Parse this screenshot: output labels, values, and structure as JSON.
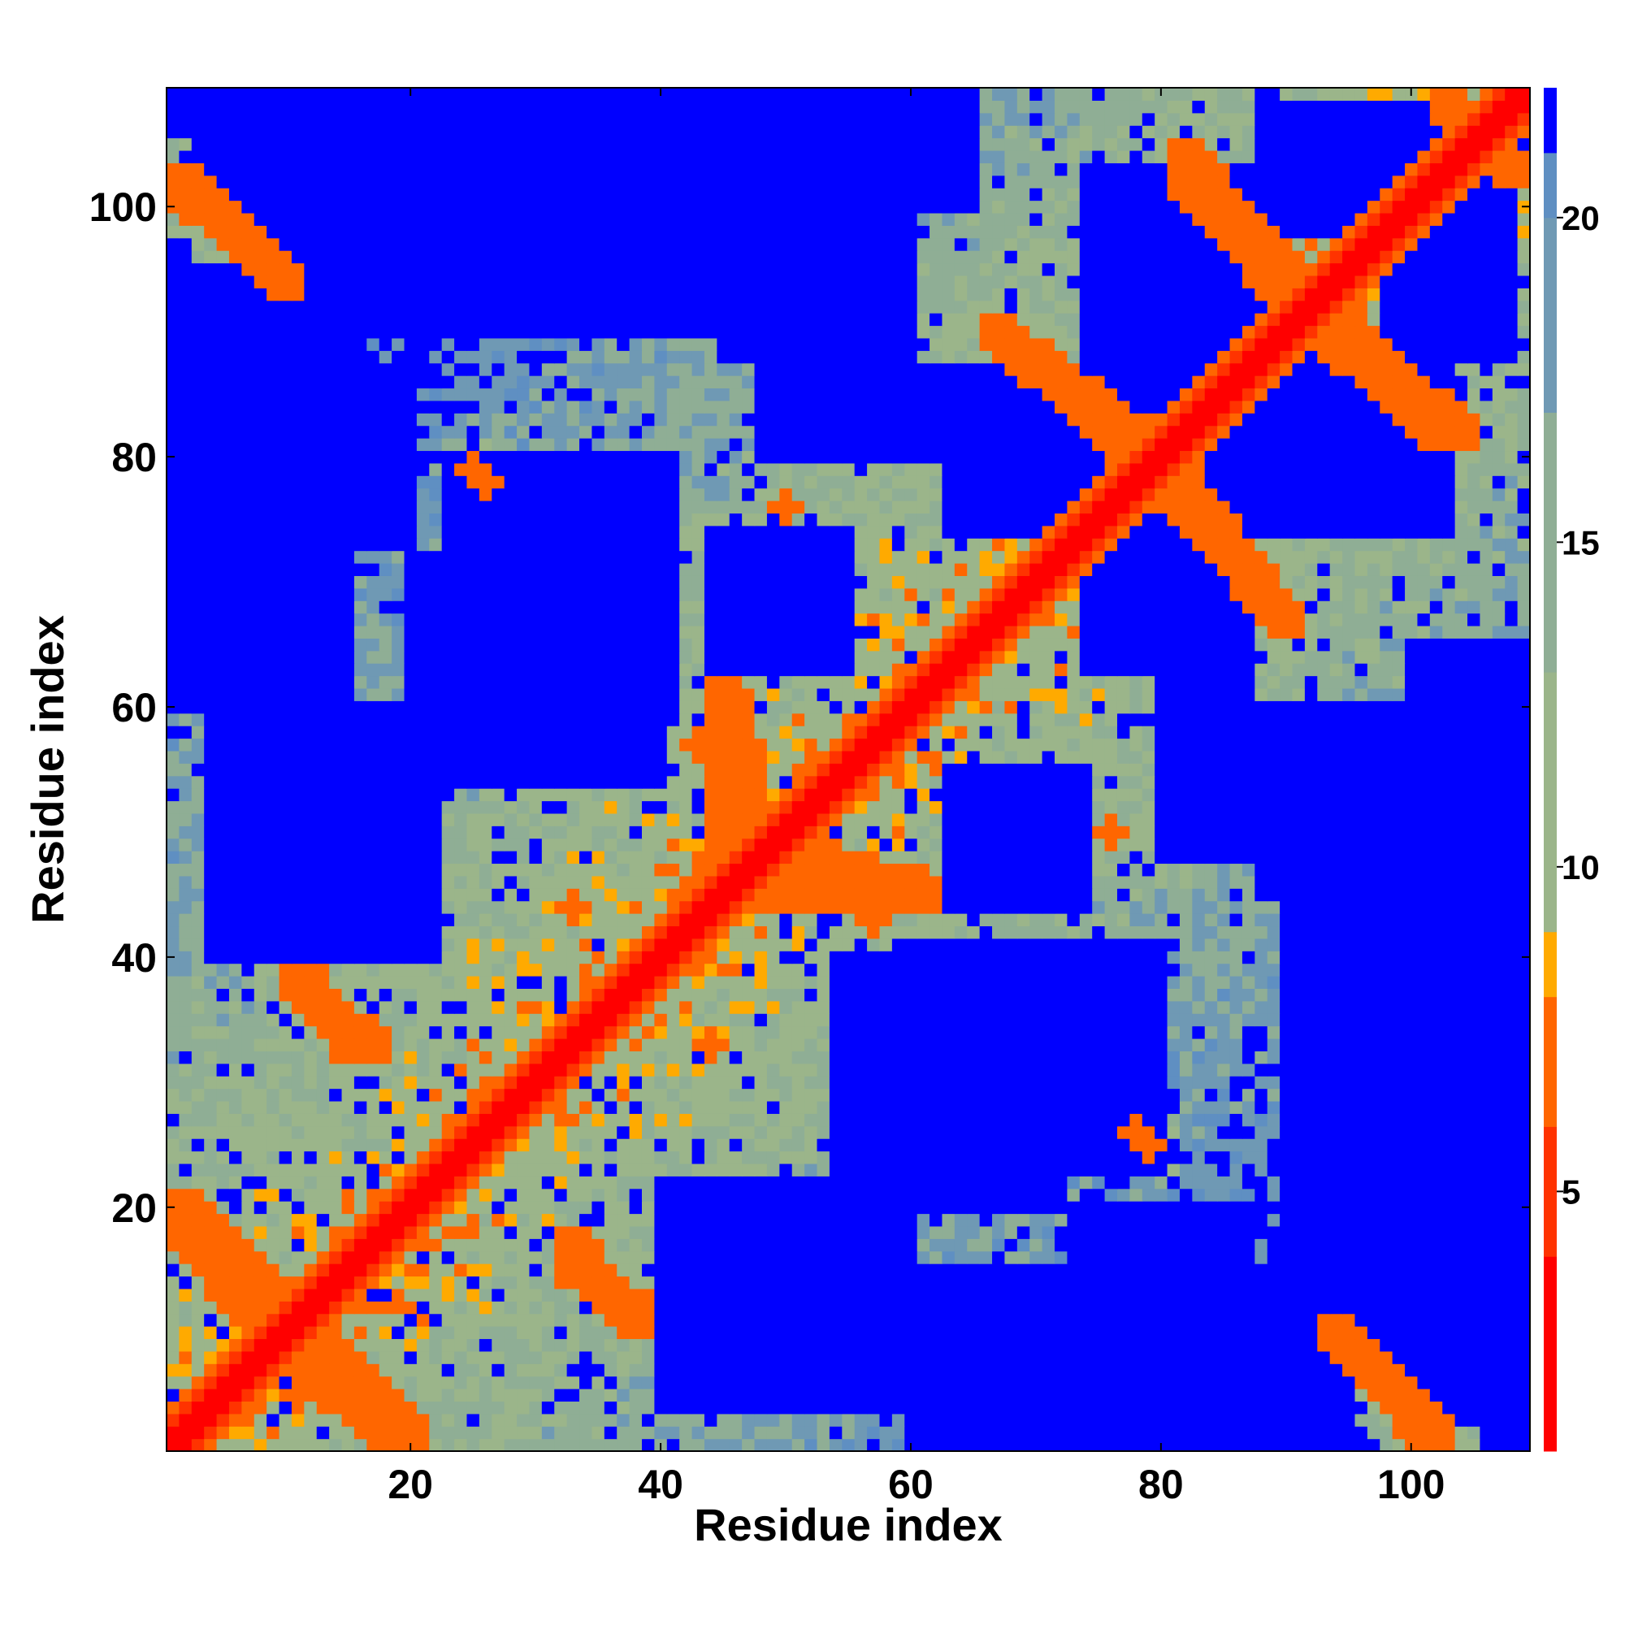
{
  "chart_data": {
    "type": "heatmap",
    "title": "",
    "xlabel": "Residue index",
    "ylabel": "Residue index",
    "x_range": [
      1,
      109
    ],
    "y_range": [
      1,
      109
    ],
    "n_residues": 109,
    "x_ticks": [
      20,
      40,
      60,
      80,
      100
    ],
    "y_ticks": [
      20,
      40,
      60,
      80,
      100
    ],
    "colorbar": {
      "range": [
        1,
        22
      ],
      "ticks": [
        5,
        10,
        15,
        20
      ],
      "clip_max": 22,
      "stops": [
        {
          "value": 1,
          "color": "#ff0000"
        },
        {
          "value": 4,
          "color": "#ff3300"
        },
        {
          "value": 6,
          "color": "#ff6600"
        },
        {
          "value": 8,
          "color": "#ffaa00"
        },
        {
          "value": 9,
          "color": "#9bb58a"
        },
        {
          "value": 13,
          "color": "#8fae95"
        },
        {
          "value": 17,
          "color": "#6f99b4"
        },
        {
          "value": 20,
          "color": "#5f8fc2"
        },
        {
          "value": 21,
          "color": "#0000ff"
        }
      ]
    },
    "features": {
      "description_note": "Symmetric residue distance map; main diagonal red, contact bands orange.",
      "contact_bands": [
        {
          "from": [
            1,
            102
          ],
          "to": [
            10,
            94
          ]
        },
        {
          "from": [
            2,
            20
          ],
          "to": [
            12,
            10
          ]
        },
        {
          "from": [
            10,
            8
          ],
          "to": [
            18,
            2
          ]
        },
        {
          "from": [
            11,
            38
          ],
          "to": [
            17,
            33
          ]
        },
        {
          "from": [
            33,
            15
          ],
          "to": [
            38,
            12
          ]
        },
        {
          "from": [
            46,
            60
          ],
          "to": [
            48,
            48
          ]
        },
        {
          "from": [
            50,
            45
          ],
          "to": [
            61,
            45
          ]
        },
        {
          "from": [
            67,
            90
          ],
          "to": [
            79,
            81
          ]
        },
        {
          "from": [
            80,
            78
          ],
          "to": [
            89,
            68
          ]
        },
        {
          "from": [
            82,
            104
          ],
          "to": [
            91,
            94
          ]
        },
        {
          "from": [
            93,
            90
          ],
          "to": [
            102,
            82
          ]
        },
        {
          "from": [
            94,
            10
          ],
          "to": [
            102,
            2
          ]
        },
        {
          "from": [
            103,
            108
          ],
          "to": [
            108,
            103
          ]
        }
      ],
      "contact_spots": [
        [
          25,
          79
        ],
        [
          50,
          76
        ],
        [
          76,
          50
        ],
        [
          79,
          25
        ],
        [
          78,
          26
        ],
        [
          26,
          78
        ],
        [
          43,
          57
        ],
        [
          57,
          43
        ],
        [
          47,
          52
        ],
        [
          52,
          47
        ],
        [
          33,
          44
        ],
        [
          44,
          33
        ]
      ],
      "blue_regions": [
        {
          "x": [
            7,
            27
          ],
          "y": [
            94,
            108
          ]
        },
        {
          "x": [
            20,
            40
          ],
          "y": [
            54,
            72
          ]
        },
        {
          "x": [
            25,
            45
          ],
          "y": [
            91,
            106
          ]
        },
        {
          "x": [
            45,
            60
          ],
          "y": [
            88,
            108
          ]
        },
        {
          "x": [
            59,
            80
          ],
          "y": [
            23,
            41
          ]
        },
        {
          "x": [
            63,
            80
          ],
          "y": [
            74,
            87
          ]
        },
        {
          "x": [
            75,
            88
          ],
          "y": [
            84,
            102
          ]
        },
        {
          "x": [
            86,
            103
          ],
          "y": [
            74,
            89
          ]
        },
        {
          "x": [
            88,
            104
          ],
          "y": [
            98,
            108
          ]
        },
        {
          "x": [
            100,
            109
          ],
          "y": [
            3,
            65
          ]
        },
        {
          "x": [
            90,
            97
          ],
          "y": [
            18,
            55
          ]
        },
        {
          "x": [
            40,
            60
          ],
          "y": [
            4,
            22
          ]
        },
        {
          "x": [
            61,
            78
          ],
          "y": [
            4,
            15
          ]
        },
        {
          "x": [
            5,
            20
          ],
          "y": [
            73,
            87
          ]
        },
        {
          "x": [
            1,
            6
          ],
          "y": [
            60,
            80
          ]
        },
        {
          "x": [
            63,
            74
          ],
          "y": [
            44,
            55
          ]
        },
        {
          "x": [
            80,
            87
          ],
          "y": [
            48,
            66
          ]
        },
        {
          "x": [
            86,
            95
          ],
          "y": [
            4,
            14
          ]
        }
      ]
    }
  }
}
